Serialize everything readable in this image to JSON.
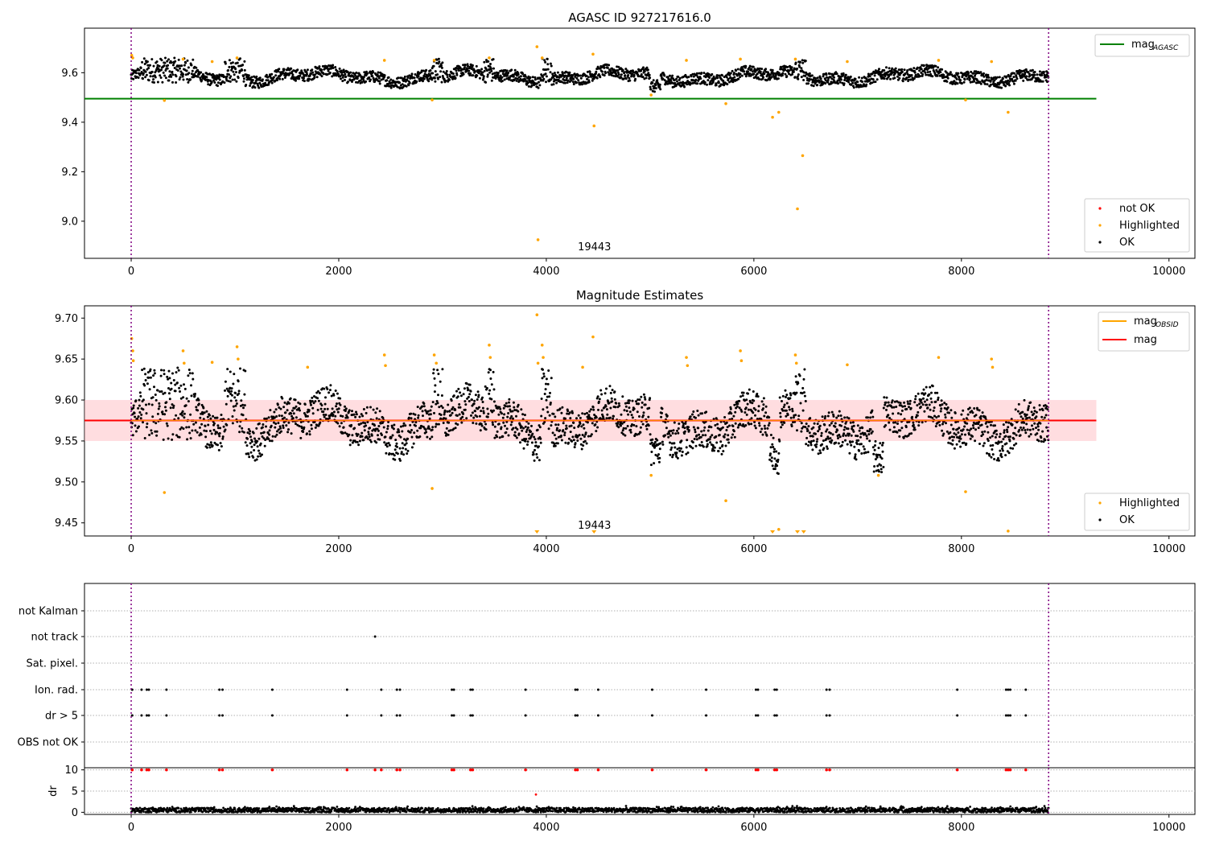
{
  "chart_data": [
    {
      "type": "scatter",
      "title": "AGASC ID 927217616.0",
      "xlim": [
        -450,
        10250
      ],
      "ylim": [
        8.85,
        9.78
      ],
      "x_ticks": [
        "0",
        "2000",
        "4000",
        "6000",
        "8000",
        "10000"
      ],
      "y_ticks": [
        "9.0",
        "9.2",
        "9.4",
        "9.6"
      ],
      "obsid_boundaries": [
        0,
        8840
      ],
      "mag_agasc": 9.495,
      "mag_agasc_line_x": [
        -450,
        9300
      ],
      "ok_band": {
        "x": [
          0,
          8840
        ],
        "mean": 9.585,
        "range": [
          9.51,
          9.645
        ]
      },
      "ok_variation": [
        {
          "x": [
            100,
            600
          ],
          "mag_range": [
            9.56,
            9.66
          ]
        },
        {
          "x": [
            900,
            1100
          ],
          "mag_range": [
            9.56,
            9.66
          ]
        },
        {
          "x": [
            2900,
            3000
          ],
          "mag_range": [
            9.56,
            9.66
          ]
        },
        {
          "x": [
            3400,
            3500
          ],
          "mag_range": [
            9.56,
            9.66
          ]
        },
        {
          "x": [
            3950,
            4050
          ],
          "mag_range": [
            9.56,
            9.66
          ]
        },
        {
          "x": [
            5000,
            5100
          ],
          "mag_range": [
            9.52,
            9.57
          ]
        },
        {
          "x": [
            6400,
            6500
          ],
          "mag_range": [
            9.56,
            9.66
          ]
        }
      ],
      "highlighted_points": [
        {
          "x": 5,
          "y": 9.67
        },
        {
          "x": 15,
          "y": 9.66
        },
        {
          "x": 320,
          "y": 9.488
        },
        {
          "x": 500,
          "y": 9.655
        },
        {
          "x": 780,
          "y": 9.645
        },
        {
          "x": 1020,
          "y": 9.66
        },
        {
          "x": 2440,
          "y": 9.65
        },
        {
          "x": 2900,
          "y": 9.49
        },
        {
          "x": 2920,
          "y": 9.65
        },
        {
          "x": 3450,
          "y": 9.66
        },
        {
          "x": 3910,
          "y": 9.705
        },
        {
          "x": 3920,
          "y": 8.925
        },
        {
          "x": 3960,
          "y": 9.66
        },
        {
          "x": 4450,
          "y": 9.675
        },
        {
          "x": 4460,
          "y": 9.385
        },
        {
          "x": 5010,
          "y": 9.51
        },
        {
          "x": 5350,
          "y": 9.65
        },
        {
          "x": 5730,
          "y": 9.475
        },
        {
          "x": 5870,
          "y": 9.655
        },
        {
          "x": 6180,
          "y": 9.42
        },
        {
          "x": 6240,
          "y": 9.44
        },
        {
          "x": 6400,
          "y": 9.655
        },
        {
          "x": 6420,
          "y": 9.05
        },
        {
          "x": 6470,
          "y": 9.265
        },
        {
          "x": 6900,
          "y": 9.645
        },
        {
          "x": 7780,
          "y": 9.65
        },
        {
          "x": 8040,
          "y": 9.49
        },
        {
          "x": 8290,
          "y": 9.645
        },
        {
          "x": 8450,
          "y": 9.44
        }
      ],
      "annotation": {
        "text": "19443",
        "x": 4420,
        "y": 8.895
      },
      "legend_upper": {
        "placement": "top-right",
        "entry": "mag",
        "subscript": "AGASC"
      },
      "legend_lower": {
        "placement": "bottom-right",
        "entries": [
          "not OK",
          "Highlighted",
          "OK"
        ]
      },
      "colors": {
        "mag_agasc": "#008000",
        "not_ok": "#ff0000",
        "highlighted": "#ffa500",
        "ok": "#000000",
        "obsid_line": "#800080"
      }
    },
    {
      "type": "scatter",
      "title": "Magnitude Estimates",
      "xlim": [
        -450,
        10250
      ],
      "ylim": [
        9.434,
        9.715
      ],
      "x_ticks": [
        "0",
        "2000",
        "4000",
        "6000",
        "8000",
        "10000"
      ],
      "y_ticks": [
        "9.45",
        "9.50",
        "9.55",
        "9.60",
        "9.65",
        "9.70"
      ],
      "obsid_boundaries": [
        0,
        8840
      ],
      "mag_mean": 9.575,
      "mag_band": [
        9.55,
        9.6
      ],
      "mag_line_x": [
        -450,
        9300
      ],
      "mag_obsid": 9.575,
      "mag_obsid_x": [
        0,
        8840
      ],
      "ok_band": {
        "x": [
          0,
          8840
        ],
        "mean": 9.572,
        "range": [
          9.51,
          9.64
        ]
      },
      "ok_variation": [
        {
          "x": [
            100,
            600
          ],
          "mag_range": [
            9.55,
            9.64
          ]
        },
        {
          "x": [
            900,
            1100
          ],
          "mag_range": [
            9.56,
            9.64
          ]
        },
        {
          "x": [
            2900,
            3000
          ],
          "mag_range": [
            9.56,
            9.64
          ]
        },
        {
          "x": [
            3400,
            3500
          ],
          "mag_range": [
            9.56,
            9.64
          ]
        },
        {
          "x": [
            3950,
            4050
          ],
          "mag_range": [
            9.56,
            9.64
          ]
        },
        {
          "x": [
            5000,
            5100
          ],
          "mag_range": [
            9.52,
            9.56
          ]
        },
        {
          "x": [
            6150,
            6250
          ],
          "mag_range": [
            9.51,
            9.56
          ]
        },
        {
          "x": [
            6400,
            6500
          ],
          "mag_range": [
            9.56,
            9.64
          ]
        },
        {
          "x": [
            7150,
            7250
          ],
          "mag_range": [
            9.51,
            9.55
          ]
        }
      ],
      "highlighted_points": [
        {
          "x": 5,
          "y": 9.675
        },
        {
          "x": 15,
          "y": 9.66
        },
        {
          "x": 20,
          "y": 9.648
        },
        {
          "x": 320,
          "y": 9.487
        },
        {
          "x": 500,
          "y": 9.66
        },
        {
          "x": 510,
          "y": 9.645
        },
        {
          "x": 780,
          "y": 9.646
        },
        {
          "x": 1020,
          "y": 9.665
        },
        {
          "x": 1030,
          "y": 9.65
        },
        {
          "x": 1700,
          "y": 9.64
        },
        {
          "x": 2440,
          "y": 9.655
        },
        {
          "x": 2450,
          "y": 9.642
        },
        {
          "x": 2900,
          "y": 9.492
        },
        {
          "x": 2920,
          "y": 9.655
        },
        {
          "x": 2940,
          "y": 9.645
        },
        {
          "x": 3450,
          "y": 9.667
        },
        {
          "x": 3460,
          "y": 9.652
        },
        {
          "x": 3910,
          "y": 9.704
        },
        {
          "x": 3920,
          "y": 9.645
        },
        {
          "x": 3960,
          "y": 9.667
        },
        {
          "x": 3970,
          "y": 9.652
        },
        {
          "x": 4350,
          "y": 9.64
        },
        {
          "x": 4450,
          "y": 9.677
        },
        {
          "x": 5010,
          "y": 9.508
        },
        {
          "x": 5350,
          "y": 9.652
        },
        {
          "x": 5360,
          "y": 9.642
        },
        {
          "x": 5730,
          "y": 9.477
        },
        {
          "x": 5870,
          "y": 9.66
        },
        {
          "x": 5880,
          "y": 9.648
        },
        {
          "x": 6240,
          "y": 9.442
        },
        {
          "x": 6400,
          "y": 9.655
        },
        {
          "x": 6410,
          "y": 9.645
        },
        {
          "x": 6900,
          "y": 9.643
        },
        {
          "x": 7200,
          "y": 9.508
        },
        {
          "x": 7780,
          "y": 9.652
        },
        {
          "x": 8040,
          "y": 9.488
        },
        {
          "x": 8290,
          "y": 9.65
        },
        {
          "x": 8300,
          "y": 9.64
        },
        {
          "x": 8450,
          "y": 9.44
        }
      ],
      "below_range_markers": [
        3910,
        4460,
        6180,
        6420,
        6480
      ],
      "annotation": {
        "text": "19443",
        "x": 4420,
        "y": 9.447
      },
      "legend_upper": {
        "placement": "top-right",
        "entries": [
          {
            "label": "mag",
            "subscript": "OBSID"
          },
          {
            "label": "mag",
            "subscript": ""
          }
        ]
      },
      "legend_lower": {
        "placement": "bottom-right",
        "entries": [
          "Highlighted",
          "OK"
        ]
      },
      "colors": {
        "mag_obsid": "#ffa500",
        "mag": "#ff0000",
        "band": "#ffb3ba",
        "highlighted": "#ffa500",
        "ok": "#000000",
        "obsid_line": "#800080"
      }
    },
    {
      "type": "scatter",
      "title": "",
      "xlim": [
        -450,
        10250
      ],
      "categories": [
        "not Kalman",
        "not track",
        "Sat. pixel.",
        "Ion. rad.",
        "dr > 5",
        "OBS not OK"
      ],
      "obsid_boundaries": [
        0,
        8840
      ],
      "flag_events": {
        "not track": [
          2350
        ],
        "Ion. rad.": [
          10,
          100,
          150,
          170,
          340,
          850,
          880,
          1360,
          2080,
          2410,
          2560,
          2590,
          3090,
          3110,
          3270,
          3290,
          3800,
          4280,
          4300,
          4500,
          5020,
          5540,
          6020,
          6040,
          6200,
          6220,
          6700,
          6730,
          7960,
          8430,
          8450,
          8470,
          8620
        ],
        "dr > 5": [
          10,
          100,
          150,
          170,
          340,
          850,
          880,
          1360,
          2080,
          2410,
          2560,
          2590,
          3090,
          3110,
          3270,
          3290,
          3800,
          4280,
          4300,
          4500,
          5020,
          5540,
          6020,
          6040,
          6200,
          6220,
          6700,
          6730,
          7960,
          8430,
          8450,
          8470,
          8620
        ]
      }
    },
    {
      "type": "scatter",
      "title": "",
      "ylabel": "dr",
      "xlim": [
        -450,
        10250
      ],
      "ylim": [
        -0.5,
        10.5
      ],
      "x_ticks": [
        "0",
        "2000",
        "4000",
        "6000",
        "8000",
        "10000"
      ],
      "y_ticks": [
        "0",
        "5",
        "10"
      ],
      "obsid_boundaries": [
        0,
        8840
      ],
      "dr_band": {
        "x": [
          0,
          8840
        ],
        "mean": 0.5,
        "range": [
          0,
          1.5
        ]
      },
      "dr_capped_points": [
        10,
        100,
        150,
        170,
        340,
        850,
        880,
        1360,
        2080,
        2350,
        2410,
        2560,
        2590,
        3090,
        3110,
        3270,
        3290,
        3800,
        4280,
        4300,
        4500,
        5020,
        5540,
        6020,
        6040,
        6200,
        6220,
        6700,
        6730,
        7960,
        8430,
        8450,
        8470,
        8620
      ],
      "dr_cap_value": 10,
      "dr_outlier": {
        "x": 3900,
        "y": 4.2
      },
      "colors": {
        "dr_capped": "#ff0000",
        "dr": "#000000",
        "obsid_line": "#800080"
      }
    }
  ]
}
